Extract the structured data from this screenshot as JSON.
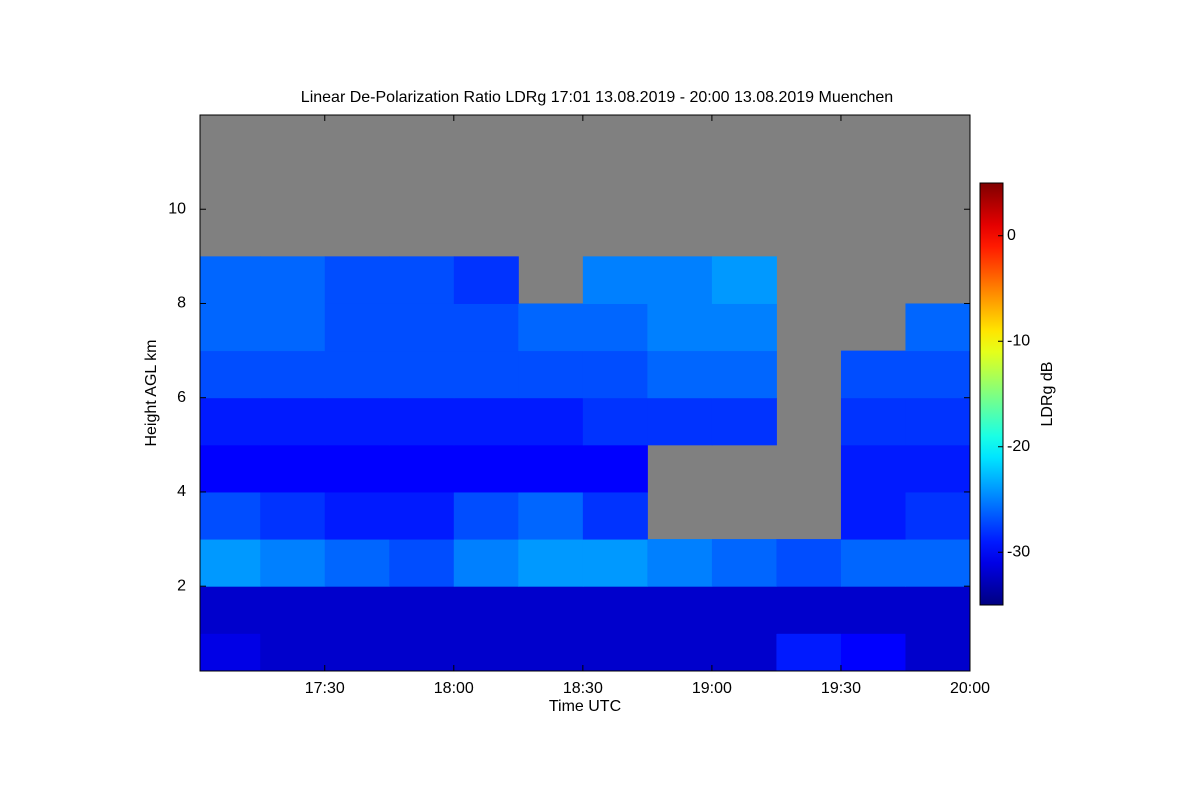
{
  "chart_data": {
    "type": "heatmap",
    "title": "Linear De-Polarization Ratio LDRg   17:01 13.08.2019 - 20:00 13.08.2019 Muenchen",
    "x_label": "Time UTC",
    "y_label": "Height AGL km",
    "colorbar_label": "LDRg dB",
    "xlim": [
      "17:01",
      "20:00"
    ],
    "xticks": [
      "17:30",
      "18:00",
      "18:30",
      "19:00",
      "19:30",
      "20:00"
    ],
    "ylim": [
      0.2,
      12
    ],
    "yticks": [
      2,
      4,
      6,
      8,
      10
    ],
    "clim": [
      -35,
      5
    ],
    "cticks": [
      0,
      -10,
      -20,
      -30
    ],
    "colormap": "jet",
    "missing_color": "#808080",
    "x_bins": [
      "17:01",
      "17:15",
      "17:30",
      "17:45",
      "18:00",
      "18:15",
      "18:30",
      "18:45",
      "19:00",
      "19:15",
      "19:30",
      "19:45",
      "20:00"
    ],
    "y_bins": [
      0.2,
      1,
      2,
      3,
      4,
      5,
      6,
      7,
      8,
      9,
      10,
      11,
      12
    ],
    "z": [
      [
        -31,
        -32,
        -32,
        -32,
        -32,
        -32,
        -32,
        -32,
        -32,
        -29,
        -30,
        -32
      ],
      [
        -32,
        -32,
        -32,
        -32,
        -32,
        -32,
        -32,
        -32,
        -32,
        -32,
        -32,
        -32
      ],
      [
        -24,
        -25,
        -26,
        -27,
        -25,
        -24,
        -24,
        -25,
        -26,
        -27,
        -26,
        -26
      ],
      [
        -27,
        -28,
        -29,
        -29,
        -27,
        -26,
        -28,
        null,
        null,
        null,
        -29,
        -28
      ],
      [
        -30,
        -30,
        -30,
        -30,
        -30,
        -30,
        -30,
        null,
        null,
        null,
        -29,
        -29
      ],
      [
        -29,
        -29,
        -29,
        -29,
        -29,
        -29,
        -28,
        -28,
        -28,
        null,
        -28,
        -28
      ],
      [
        -27,
        -27,
        -27,
        -27,
        -27,
        -27,
        -27,
        -26,
        -26,
        null,
        -27,
        -27
      ],
      [
        -26,
        -26,
        -27,
        -27,
        -27,
        -26,
        -26,
        -25,
        -25,
        null,
        null,
        -26
      ],
      [
        -26,
        -26,
        -27,
        -27,
        -28,
        null,
        -25,
        -25,
        -24,
        null,
        null,
        null
      ],
      [
        null,
        null,
        null,
        null,
        null,
        null,
        null,
        null,
        null,
        null,
        null,
        null
      ],
      [
        null,
        null,
        null,
        null,
        null,
        null,
        null,
        null,
        null,
        null,
        null,
        null
      ],
      [
        null,
        null,
        null,
        null,
        null,
        null,
        null,
        null,
        null,
        null,
        null,
        null
      ]
    ]
  }
}
